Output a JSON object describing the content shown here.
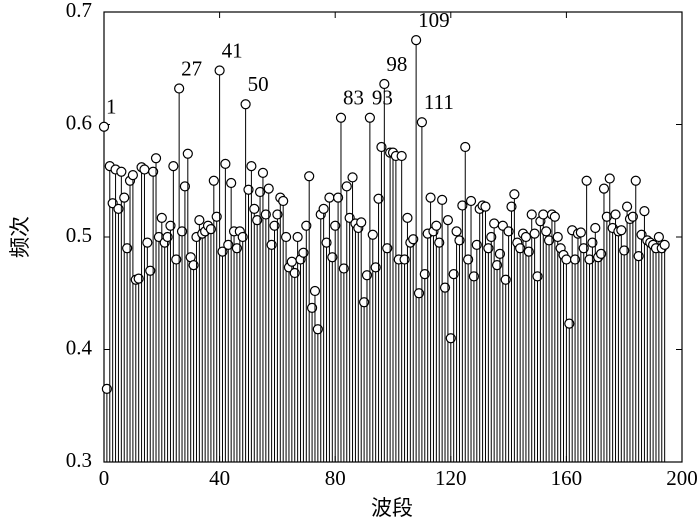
{
  "chart_data": {
    "type": "stem",
    "xlabel": "波段",
    "ylabel": "频次",
    "x": [
      0,
      1,
      2,
      3,
      4,
      5,
      6,
      7,
      8,
      9,
      10,
      11,
      12,
      13,
      14,
      15,
      16,
      17,
      18,
      19,
      20,
      21,
      22,
      23,
      24,
      25,
      26,
      27,
      28,
      29,
      30,
      31,
      32,
      33,
      34,
      35,
      36,
      37,
      38,
      39,
      40,
      41,
      42,
      43,
      44,
      45,
      46,
      47,
      48,
      49,
      50,
      51,
      52,
      53,
      54,
      55,
      56,
      57,
      58,
      59,
      60,
      61,
      62,
      63,
      64,
      65,
      66,
      67,
      68,
      69,
      70,
      71,
      72,
      73,
      74,
      75,
      76,
      77,
      78,
      79,
      80,
      81,
      82,
      83,
      84,
      85,
      86,
      87,
      88,
      89,
      90,
      91,
      92,
      93,
      94,
      95,
      96,
      97,
      98,
      99,
      100,
      101,
      102,
      103,
      104,
      105,
      106,
      107,
      108,
      109,
      110,
      111,
      112,
      113,
      114,
      115,
      116,
      117,
      118,
      119,
      120,
      121,
      122,
      123,
      124,
      125,
      126,
      127,
      128,
      129,
      130,
      131,
      132,
      133,
      134,
      135,
      136,
      137,
      138,
      139,
      140,
      141,
      142,
      143,
      144,
      145,
      146,
      147,
      148,
      149,
      150,
      151,
      152,
      153,
      154,
      155,
      156,
      157,
      158,
      159,
      160,
      161,
      162,
      163,
      164,
      165,
      166,
      167,
      168,
      169,
      170,
      171,
      172,
      173,
      174,
      175,
      176,
      177,
      178,
      179,
      180,
      181,
      182,
      183,
      184,
      185,
      186,
      187,
      188,
      189,
      190,
      191,
      192,
      193,
      194
    ],
    "values": [
      0.598,
      0.365,
      0.563,
      0.53,
      0.56,
      0.525,
      0.558,
      0.535,
      0.49,
      0.55,
      0.555,
      0.462,
      0.463,
      0.562,
      0.56,
      0.495,
      0.47,
      0.558,
      0.57,
      0.5,
      0.517,
      0.495,
      0.5,
      0.51,
      0.563,
      0.48,
      0.632,
      0.505,
      0.545,
      0.574,
      0.482,
      0.475,
      0.5,
      0.515,
      0.503,
      0.505,
      0.51,
      0.507,
      0.55,
      0.518,
      0.648,
      0.487,
      0.565,
      0.493,
      0.548,
      0.505,
      0.49,
      0.505,
      0.5,
      0.618,
      0.542,
      0.563,
      0.525,
      0.515,
      0.54,
      0.557,
      0.52,
      0.543,
      0.493,
      0.51,
      0.52,
      0.535,
      0.532,
      0.5,
      0.473,
      0.478,
      0.468,
      0.5,
      0.48,
      0.486,
      0.51,
      0.554,
      0.437,
      0.452,
      0.418,
      0.52,
      0.525,
      0.495,
      0.535,
      0.482,
      0.51,
      0.535,
      0.606,
      0.472,
      0.545,
      0.517,
      0.553,
      0.512,
      0.508,
      0.513,
      0.442,
      0.466,
      0.606,
      0.502,
      0.473,
      0.534,
      0.58,
      0.636,
      0.49,
      0.575,
      0.575,
      0.572,
      0.48,
      0.572,
      0.48,
      0.517,
      0.495,
      0.498,
      0.675,
      0.45,
      0.602,
      0.467,
      0.503,
      0.535,
      0.505,
      0.51,
      0.495,
      0.533,
      0.455,
      0.515,
      0.41,
      0.467,
      0.505,
      0.497,
      0.528,
      0.58,
      0.48,
      0.532,
      0.465,
      0.493,
      0.525,
      0.528,
      0.527,
      0.49,
      0.5,
      0.512,
      0.475,
      0.485,
      0.51,
      0.462,
      0.505,
      0.527,
      0.538,
      0.495,
      0.49,
      0.503,
      0.5,
      0.487,
      0.52,
      0.503,
      0.465,
      0.514,
      0.52,
      0.505,
      0.497,
      0.52,
      0.518,
      0.5,
      0.49,
      0.484,
      0.48,
      0.423,
      0.506,
      0.48,
      0.503,
      0.504,
      0.49,
      0.55,
      0.48,
      0.495,
      0.508,
      0.482,
      0.485,
      0.543,
      0.518,
      0.552,
      0.508,
      0.52,
      0.505,
      0.506,
      0.488,
      0.527,
      0.516,
      0.518,
      0.55,
      0.483,
      0.502,
      0.523,
      0.497,
      0.495,
      0.493,
      0.49,
      0.5,
      0.49,
      0.493
    ],
    "color": "#000000",
    "xlim": [
      0,
      200
    ],
    "xticks": [
      0,
      40,
      80,
      120,
      160,
      200
    ],
    "ylim": [
      0.3,
      0.7
    ],
    "yticks": [
      0.3,
      0.4,
      0.5,
      0.6,
      0.7
    ],
    "annotations": [
      {
        "label": "1",
        "x": 0
      },
      {
        "label": "27",
        "x": 26
      },
      {
        "label": "41",
        "x": 40
      },
      {
        "label": "50",
        "x": 49
      },
      {
        "label": "83",
        "x": 82
      },
      {
        "label": "93",
        "x": 92
      },
      {
        "label": "98",
        "x": 97
      },
      {
        "label": "109",
        "x": 108
      },
      {
        "label": "111",
        "x": 110
      }
    ]
  }
}
